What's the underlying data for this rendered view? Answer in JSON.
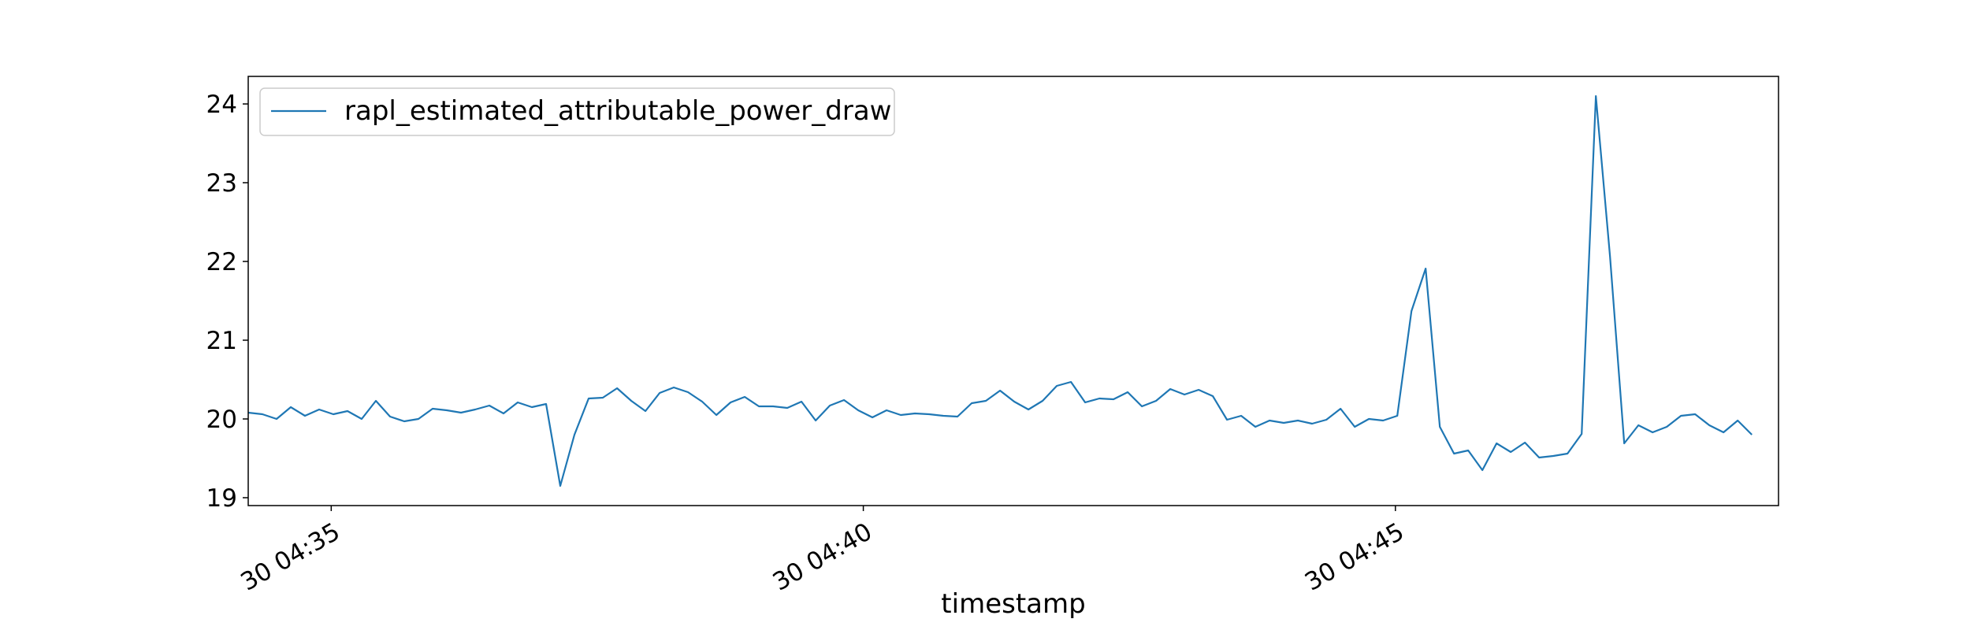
{
  "chart_data": {
    "type": "line",
    "xlabel": "timestamp",
    "ylabel": "",
    "x_tick_labels": [
      "30 04:35",
      "30 04:40",
      "30 04:45"
    ],
    "x_tick_minutes": [
      0,
      5,
      10
    ],
    "x_range_minutes": [
      -0.78,
      13.6
    ],
    "y_ticks": [
      19,
      20,
      21,
      22,
      23,
      24
    ],
    "ylim": [
      18.9,
      24.35
    ],
    "grid": false,
    "legend_position": "top-left",
    "series": [
      {
        "name": "rapl_estimated_attributable_power_draw",
        "color": "#1f77b4",
        "x_start_minutes": -0.78,
        "x_step_minutes": 0.1333,
        "values": [
          20.08,
          20.06,
          20.0,
          20.15,
          20.04,
          20.12,
          20.06,
          20.1,
          20.0,
          20.23,
          20.03,
          19.97,
          20.0,
          20.13,
          20.11,
          20.08,
          20.12,
          20.17,
          20.07,
          20.21,
          20.15,
          20.19,
          19.15,
          19.8,
          20.26,
          20.27,
          20.39,
          20.23,
          20.1,
          20.33,
          20.4,
          20.34,
          20.22,
          20.05,
          20.21,
          20.28,
          20.16,
          20.16,
          20.14,
          20.22,
          19.98,
          20.17,
          20.24,
          20.11,
          20.02,
          20.11,
          20.05,
          20.07,
          20.06,
          20.04,
          20.03,
          20.2,
          20.23,
          20.36,
          20.22,
          20.12,
          20.23,
          20.42,
          20.47,
          20.21,
          20.26,
          20.25,
          20.34,
          20.16,
          20.23,
          20.38,
          20.31,
          20.37,
          20.29,
          19.99,
          20.04,
          19.9,
          19.98,
          19.95,
          19.98,
          19.94,
          19.99,
          20.13,
          19.9,
          20.0,
          19.98,
          20.04,
          21.37,
          21.91,
          19.9,
          19.56,
          19.6,
          19.35,
          19.69,
          19.58,
          19.7,
          19.51,
          19.53,
          19.56,
          19.81,
          24.1,
          22.06,
          19.69,
          19.92,
          19.83,
          19.9,
          20.04,
          20.06,
          19.92,
          19.83,
          19.98,
          19.8
        ]
      }
    ]
  }
}
